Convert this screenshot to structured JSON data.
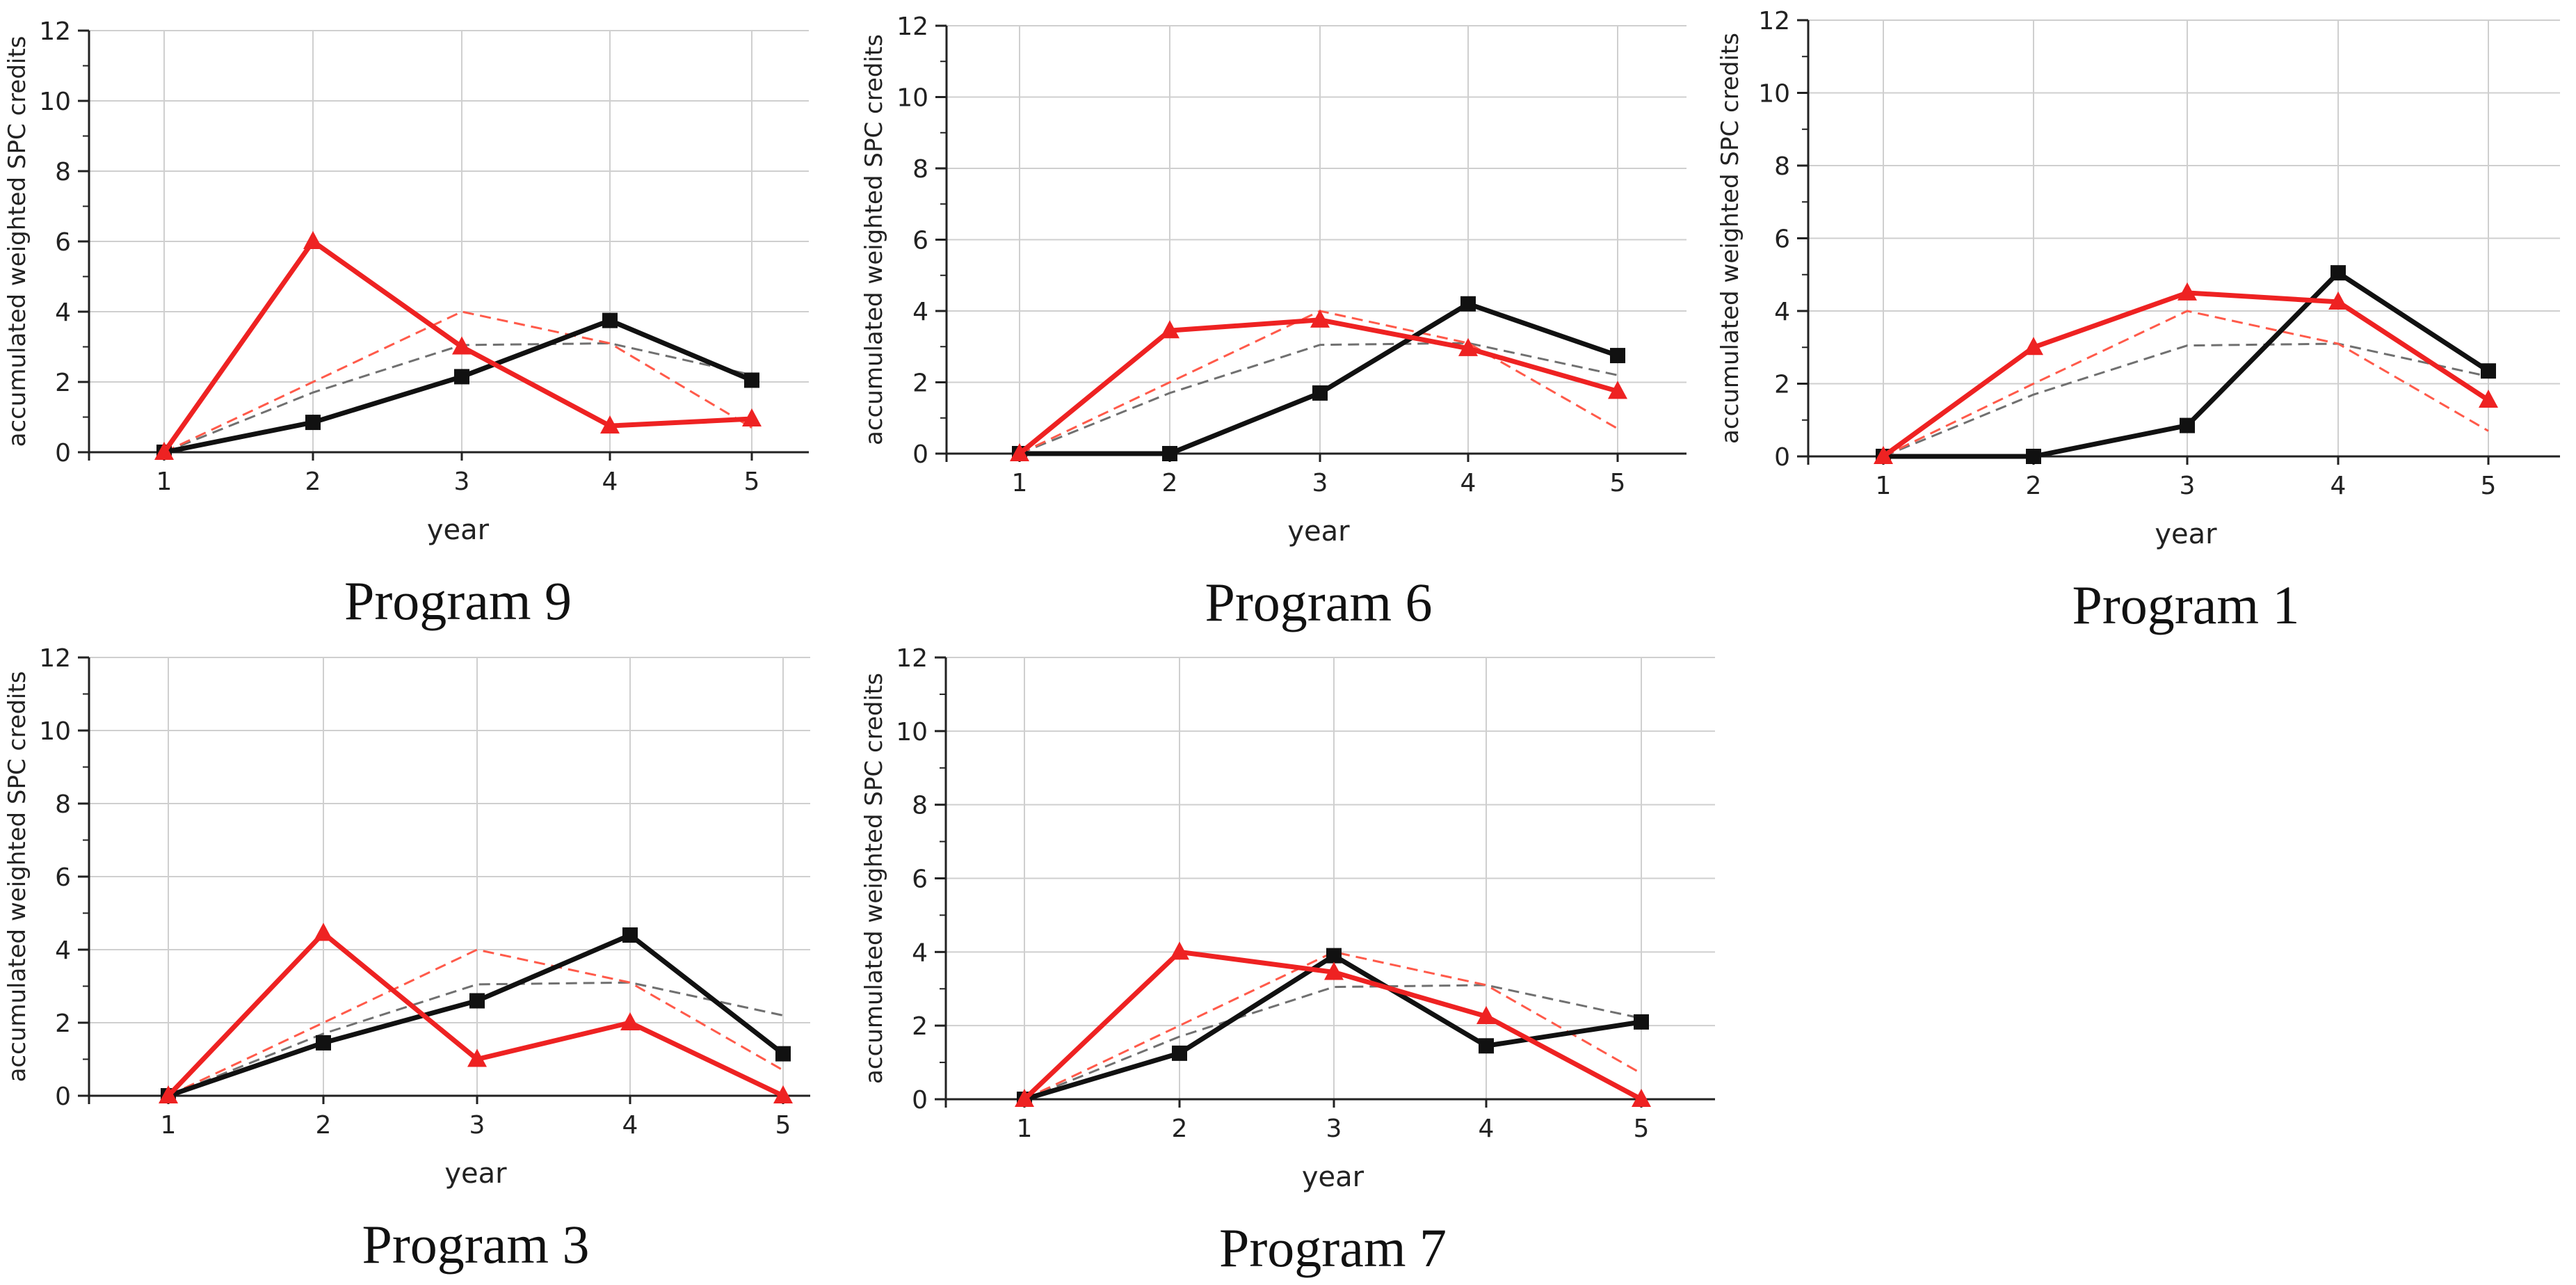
{
  "figure": {
    "x": [
      1,
      2,
      3,
      4,
      5
    ],
    "colors": {
      "black_series": "#111111",
      "red_series": "#ee2222",
      "grid": "#cfcfcf",
      "axis": "#222222",
      "ref_gray": "#707070",
      "ref_red": "#ff5a4a"
    }
  },
  "chart_data": [
    {
      "type": "line",
      "title": "Program 9",
      "xlabel": "year",
      "ylabel": "accumulated weighted SPC credits",
      "x": [
        1,
        2,
        3,
        4,
        5
      ],
      "xticks": [
        "1",
        "2",
        "3",
        "4",
        "5"
      ],
      "yticks": [
        "0",
        "2",
        "4",
        "6",
        "8",
        "10",
        "12"
      ],
      "ylim": [
        0,
        12
      ],
      "grid": true,
      "series": [
        {
          "name": "program (black, squares)",
          "style": "solid-black-square",
          "values": [
            0,
            0.85,
            2.15,
            3.75,
            2.05
          ]
        },
        {
          "name": "program (red, triangles)",
          "style": "solid-red-triangle",
          "values": [
            0,
            6.0,
            3.0,
            0.75,
            0.95
          ]
        },
        {
          "name": "reference (gray dashed)",
          "style": "dashed-gray",
          "values": [
            0,
            1.7,
            3.05,
            3.1,
            2.2
          ]
        },
        {
          "name": "reference (red dashed)",
          "style": "dashed-red",
          "values": [
            0,
            2.0,
            4.0,
            3.1,
            0.7
          ]
        }
      ]
    },
    {
      "type": "line",
      "title": "Program 6",
      "xlabel": "year",
      "ylabel": "accumulated weighted SPC credits",
      "x": [
        1,
        2,
        3,
        4,
        5
      ],
      "xticks": [
        "1",
        "2",
        "3",
        "4",
        "5"
      ],
      "yticks": [
        "0",
        "2",
        "4",
        "6",
        "8",
        "10",
        "12"
      ],
      "ylim": [
        0,
        12
      ],
      "grid": true,
      "series": [
        {
          "name": "program (black, squares)",
          "style": "solid-black-square",
          "values": [
            0,
            0,
            1.7,
            4.2,
            2.75
          ]
        },
        {
          "name": "program (red, triangles)",
          "style": "solid-red-triangle",
          "values": [
            0,
            3.45,
            3.75,
            2.95,
            1.75
          ]
        },
        {
          "name": "reference (gray dashed)",
          "style": "dashed-gray",
          "values": [
            0,
            1.7,
            3.05,
            3.1,
            2.2
          ]
        },
        {
          "name": "reference (red dashed)",
          "style": "dashed-red",
          "values": [
            0,
            2.0,
            4.0,
            3.1,
            0.7
          ]
        }
      ]
    },
    {
      "type": "line",
      "title": "Program 1",
      "xlabel": "year",
      "ylabel": "accumulated weighted SPC credits",
      "x": [
        1,
        2,
        3,
        4,
        5
      ],
      "xticks": [
        "1",
        "2",
        "3",
        "4",
        "5"
      ],
      "yticks": [
        "0",
        "2",
        "4",
        "6",
        "8",
        "10",
        "12"
      ],
      "ylim": [
        0,
        12
      ],
      "grid": true,
      "series": [
        {
          "name": "program (black, squares)",
          "style": "solid-black-square",
          "values": [
            0,
            0,
            0.85,
            5.05,
            2.35
          ]
        },
        {
          "name": "program (red, triangles)",
          "style": "solid-red-triangle",
          "values": [
            0,
            3.0,
            4.5,
            4.25,
            1.55
          ]
        },
        {
          "name": "reference (gray dashed)",
          "style": "dashed-gray",
          "values": [
            0,
            1.7,
            3.05,
            3.1,
            2.2
          ]
        },
        {
          "name": "reference (red dashed)",
          "style": "dashed-red",
          "values": [
            0,
            2.0,
            4.0,
            3.1,
            0.7
          ]
        }
      ]
    },
    {
      "type": "line",
      "title": "Program 3",
      "xlabel": "year",
      "ylabel": "accumulated weighted SPC credits",
      "x": [
        1,
        2,
        3,
        4,
        5
      ],
      "xticks": [
        "1",
        "2",
        "3",
        "4",
        "5"
      ],
      "yticks": [
        "0",
        "2",
        "4",
        "6",
        "8",
        "10",
        "12"
      ],
      "ylim": [
        0,
        12
      ],
      "grid": true,
      "series": [
        {
          "name": "program (black, squares)",
          "style": "solid-black-square",
          "values": [
            0,
            1.45,
            2.6,
            4.4,
            1.15
          ]
        },
        {
          "name": "program (red, triangles)",
          "style": "solid-red-triangle",
          "values": [
            0,
            4.45,
            1.0,
            2.0,
            0
          ]
        },
        {
          "name": "reference (gray dashed)",
          "style": "dashed-gray",
          "values": [
            0,
            1.7,
            3.05,
            3.1,
            2.2
          ]
        },
        {
          "name": "reference (red dashed)",
          "style": "dashed-red",
          "values": [
            0,
            2.0,
            4.0,
            3.1,
            0.7
          ]
        }
      ]
    },
    {
      "type": "line",
      "title": "Program 7",
      "xlabel": "year",
      "ylabel": "accumulated weighted SPC credits",
      "x": [
        1,
        2,
        3,
        4,
        5
      ],
      "xticks": [
        "1",
        "2",
        "3",
        "4",
        "5"
      ],
      "yticks": [
        "0",
        "2",
        "4",
        "6",
        "8",
        "10",
        "12"
      ],
      "ylim": [
        0,
        12
      ],
      "grid": true,
      "series": [
        {
          "name": "program (black, squares)",
          "style": "solid-black-square",
          "values": [
            0,
            1.25,
            3.9,
            1.45,
            2.1
          ]
        },
        {
          "name": "program (red, triangles)",
          "style": "solid-red-triangle",
          "values": [
            0,
            4.0,
            3.45,
            2.25,
            0
          ]
        },
        {
          "name": "reference (gray dashed)",
          "style": "dashed-gray",
          "values": [
            0,
            1.7,
            3.05,
            3.1,
            2.2
          ]
        },
        {
          "name": "reference (red dashed)",
          "style": "dashed-red",
          "values": [
            0,
            2.0,
            4.0,
            3.1,
            0.7
          ]
        }
      ]
    }
  ]
}
